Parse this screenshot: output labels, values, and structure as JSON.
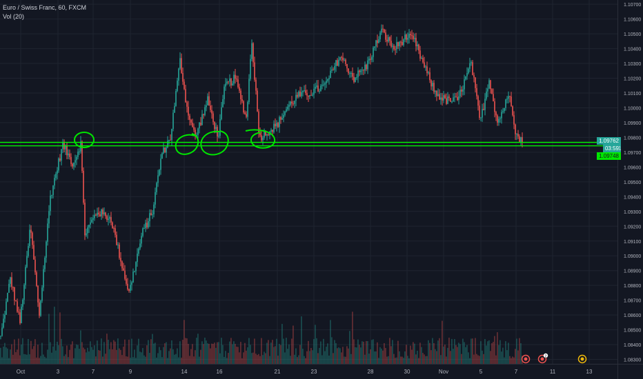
{
  "legend": {
    "symbol": "Euro / Swiss Franc, 60, FXCM",
    "volume": "Vol (20)"
  },
  "tags": {
    "last_price": "1.09762",
    "countdown": "03:59",
    "line_price": "1.09748",
    "small_left": "1"
  },
  "colors": {
    "background": "#131722",
    "grid": "#1f2430",
    "up": "#26a69a",
    "down": "#ef5350",
    "hline": "#00ff00",
    "annotation": "#00e600",
    "axis_text": "#b2b5be"
  },
  "event_icons": [
    "earnings-icon",
    "dividend-icon",
    "news-icon"
  ],
  "event_badge": "2",
  "chart_data": {
    "type": "candlestick",
    "title": "Euro / Swiss Franc, 60, FXCM",
    "y_ticks": [
      "1.10700",
      "1.10600",
      "1.10500",
      "1.10400",
      "1.10300",
      "1.10200",
      "1.10100",
      "1.10000",
      "1.09900",
      "1.09800",
      "1.09700",
      "1.09600",
      "1.09500",
      "1.09400",
      "1.09300",
      "1.09200",
      "1.09100",
      "1.09000",
      "1.08900",
      "1.08800",
      "1.08700",
      "1.08600",
      "1.08500",
      "1.08400",
      "1.08300"
    ],
    "x_ticks": [
      "Oct",
      "3",
      "7",
      "9",
      "14",
      "16",
      "21",
      "23",
      "28",
      "30",
      "Nov",
      "5",
      "7",
      "11",
      "13"
    ],
    "ylim": [
      1.0827,
      1.1071
    ],
    "horizontal_lines": [
      1.09762,
      1.09748
    ],
    "anchors": [
      [
        0,
        1.0845
      ],
      [
        14,
        1.0885
      ],
      [
        28,
        1.0855
      ],
      [
        43,
        1.092
      ],
      [
        56,
        1.086
      ],
      [
        72,
        1.094
      ],
      [
        90,
        1.0975
      ],
      [
        105,
        1.0962
      ],
      [
        116,
        1.0976
      ],
      [
        122,
        1.0915
      ],
      [
        140,
        1.093
      ],
      [
        160,
        1.0925
      ],
      [
        175,
        1.0895
      ],
      [
        186,
        1.0875
      ],
      [
        205,
        1.0915
      ],
      [
        220,
        1.093
      ],
      [
        233,
        1.0968
      ],
      [
        246,
        1.098
      ],
      [
        260,
        1.1032
      ],
      [
        270,
        1.1
      ],
      [
        282,
        1.098
      ],
      [
        300,
        1.1005
      ],
      [
        315,
        1.098
      ],
      [
        325,
        1.1015
      ],
      [
        340,
        1.102
      ],
      [
        356,
        1.0993
      ],
      [
        364,
        1.1045
      ],
      [
        375,
        1.098
      ],
      [
        390,
        1.0985
      ],
      [
        400,
        1.0988
      ],
      [
        415,
        1.1
      ],
      [
        430,
        1.1008
      ],
      [
        448,
        1.101
      ],
      [
        470,
        1.1015
      ],
      [
        492,
        1.1035
      ],
      [
        512,
        1.102
      ],
      [
        530,
        1.1028
      ],
      [
        552,
        1.1052
      ],
      [
        570,
        1.104
      ],
      [
        588,
        1.1048
      ],
      [
        600,
        1.1045
      ],
      [
        612,
        1.103
      ],
      [
        630,
        1.101
      ],
      [
        645,
        1.1005
      ],
      [
        662,
        1.1005
      ],
      [
        682,
        1.103
      ],
      [
        695,
        1.099
      ],
      [
        708,
        1.102
      ],
      [
        720,
        1.099
      ],
      [
        738,
        1.101
      ],
      [
        747,
        1.0982
      ],
      [
        757,
        1.0976
      ]
    ]
  }
}
